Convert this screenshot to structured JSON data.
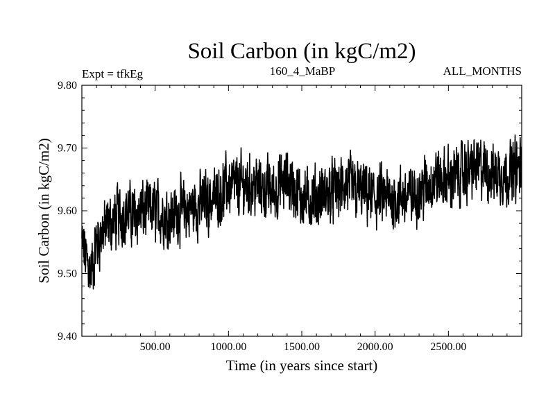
{
  "chart_data": {
    "type": "line",
    "title": "Soil Carbon (in kgC/m2)",
    "header_left": "Expt = tfkEg",
    "header_center": "160_4_MaBP",
    "header_right": "ALL_MONTHS",
    "xlabel": "Time (in years since start)",
    "ylabel": "Soil Carbon (in kgC/m2)",
    "xlim": [
      0,
      3000
    ],
    "ylim": [
      9.4,
      9.8
    ],
    "x_ticks": [
      500,
      1000,
      1500,
      2000,
      2500
    ],
    "x_tick_labels": [
      "500.00",
      "1000.00",
      "1500.00",
      "2000.00",
      "2500.00"
    ],
    "y_ticks": [
      9.4,
      9.5,
      9.6,
      9.7,
      9.8
    ],
    "y_tick_labels": [
      "9.40",
      "9.50",
      "9.60",
      "9.70",
      "9.80"
    ],
    "grid": false,
    "line_color": "#000000",
    "series": [
      {
        "x": [
          0,
          20,
          40,
          60,
          80,
          100,
          150,
          200,
          250,
          300,
          350,
          400,
          450,
          500,
          600,
          700,
          800,
          900,
          1000,
          1100,
          1200,
          1300,
          1400,
          1500,
          1600,
          1700,
          1800,
          1900,
          2000,
          2100,
          2200,
          2300,
          2400,
          2500,
          2600,
          2700,
          2800,
          2900,
          3000
        ],
        "values": [
          9.55,
          9.53,
          9.52,
          9.5,
          9.52,
          9.55,
          9.57,
          9.58,
          9.59,
          9.6,
          9.59,
          9.6,
          9.6,
          9.6,
          9.59,
          9.6,
          9.61,
          9.62,
          9.64,
          9.64,
          9.64,
          9.63,
          9.65,
          9.62,
          9.62,
          9.63,
          9.64,
          9.63,
          9.62,
          9.62,
          9.62,
          9.63,
          9.65,
          9.65,
          9.66,
          9.67,
          9.66,
          9.66,
          9.67
        ]
      }
    ]
  }
}
